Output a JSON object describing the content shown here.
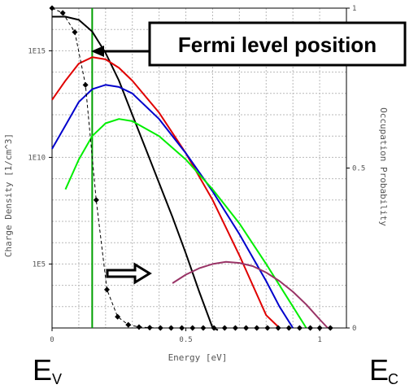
{
  "chart_data": {
    "type": "line",
    "xlabel": "Energy [eV]",
    "ylabel_left": "Charge Density [1/cm^3]",
    "ylabel_right": "Occupation Probability",
    "x_ticks": [
      "0",
      "0.5",
      "1"
    ],
    "y_left_ticks": [
      "1E5",
      "1E10",
      "1E15"
    ],
    "y_right_ticks": [
      "0",
      "0.5",
      "1"
    ],
    "xlim": [
      0,
      1.1
    ],
    "ylim_left_log10": [
      2,
      17
    ],
    "ylim_right": [
      0,
      1
    ],
    "log_scale_left": true,
    "grid": true,
    "annotation": "Fermi level position",
    "fermi_level_ev": 0.15,
    "band_labels": {
      "left_main": "E",
      "left_sub": "V",
      "right_main": "E",
      "right_sub": "C"
    },
    "series": [
      {
        "color": "#000000",
        "style": "solid",
        "axis": "left",
        "x": [
          0.0,
          0.05,
          0.1,
          0.15,
          0.2,
          0.25,
          0.3,
          0.35,
          0.4,
          0.45,
          0.5,
          0.55,
          0.6,
          0.62
        ],
        "y_log10": [
          16.6,
          16.6,
          16.45,
          15.9,
          14.9,
          13.6,
          12.0,
          10.4,
          8.8,
          7.2,
          5.5,
          3.7,
          2.0,
          1.9
        ]
      },
      {
        "color": "#e00000",
        "style": "solid",
        "axis": "left",
        "x": [
          0.0,
          0.05,
          0.1,
          0.15,
          0.2,
          0.25,
          0.3,
          0.4,
          0.5,
          0.6,
          0.7,
          0.8,
          0.85
        ],
        "y_log10": [
          12.7,
          13.6,
          14.4,
          14.7,
          14.6,
          14.2,
          13.6,
          12.1,
          10.2,
          8.0,
          5.4,
          2.6,
          2.0
        ]
      },
      {
        "color": "#0000cc",
        "style": "solid",
        "axis": "left",
        "x": [
          0.0,
          0.05,
          0.1,
          0.15,
          0.2,
          0.25,
          0.3,
          0.4,
          0.5,
          0.6,
          0.7,
          0.8,
          0.85,
          0.9
        ],
        "y_log10": [
          10.4,
          11.5,
          12.6,
          13.2,
          13.4,
          13.3,
          13.0,
          11.8,
          10.2,
          8.4,
          6.4,
          4.2,
          3.0,
          2.0
        ]
      },
      {
        "color": "#00ee00",
        "style": "solid",
        "axis": "left",
        "x": [
          0.05,
          0.1,
          0.15,
          0.2,
          0.25,
          0.3,
          0.4,
          0.5,
          0.6,
          0.7,
          0.8,
          0.9,
          0.95
        ],
        "y_log10": [
          8.5,
          9.9,
          11.0,
          11.6,
          11.8,
          11.7,
          11.0,
          9.9,
          8.5,
          6.9,
          5.0,
          3.0,
          2.0
        ]
      },
      {
        "color": "#993366",
        "style": "solid",
        "axis": "left",
        "x": [
          0.45,
          0.5,
          0.55,
          0.6,
          0.65,
          0.7,
          0.75,
          0.8,
          0.85,
          0.9,
          0.95,
          1.0,
          1.03
        ],
        "y_log10": [
          4.1,
          4.5,
          4.8,
          5.0,
          5.1,
          5.05,
          4.9,
          4.6,
          4.2,
          3.7,
          3.1,
          2.4,
          2.0
        ]
      },
      {
        "color": "#000000",
        "style": "dashed",
        "axis": "right",
        "markers": "diamond",
        "x": [
          0.0,
          0.04,
          0.085,
          0.125,
          0.165,
          0.205,
          0.245,
          0.285,
          0.325,
          0.365,
          0.405,
          0.445,
          0.485,
          0.525,
          0.565,
          0.605,
          0.645,
          0.685,
          0.725,
          0.765,
          0.805,
          0.845,
          0.885,
          0.925,
          0.965,
          1.0,
          1.04
        ],
        "y": [
          1.0,
          0.985,
          0.925,
          0.76,
          0.4,
          0.12,
          0.035,
          0.01,
          0.003,
          0.001,
          0.0,
          0.0,
          0.0,
          0.0,
          0.0,
          0.0,
          0.0,
          0.0,
          0.0,
          0.0,
          0.0,
          0.0,
          0.0,
          0.0,
          0.0,
          0.0,
          0.0
        ]
      }
    ]
  }
}
